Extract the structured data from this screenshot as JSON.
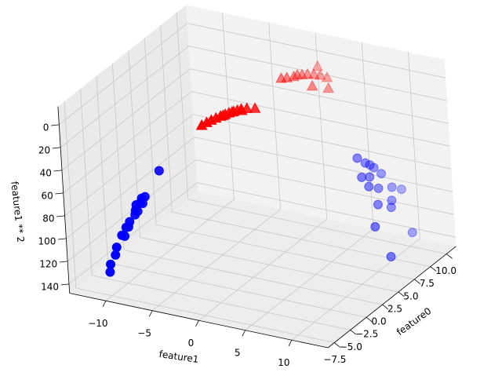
{
  "chart_data": {
    "type": "scatter3d",
    "xlabel": "feature0",
    "ylabel": "feature1",
    "zlabel": "feature1 ** 2",
    "xlim": [
      -8.5,
      11.5
    ],
    "ylim": [
      -13.9,
      13.9
    ],
    "zlim": [
      -16,
      148
    ],
    "xticks": [
      {
        "value": -7.5,
        "label": "−7.5"
      },
      {
        "value": -5,
        "label": "−5.0"
      },
      {
        "value": -2.5,
        "label": "−2.5"
      },
      {
        "value": 0,
        "label": "0.0"
      },
      2.5,
      {
        "value": 5,
        "label": "5.0"
      },
      7.5,
      {
        "value": 10,
        "label": "10.0"
      }
    ],
    "yticks": [
      {
        "value": -10,
        "label": "−10"
      },
      {
        "value": -5,
        "label": "−5"
      },
      0,
      5,
      10
    ],
    "zticks": [
      0,
      20,
      40,
      60,
      80,
      100,
      120,
      140
    ],
    "grid": true,
    "depthshade": true,
    "series": [
      {
        "color": "#ff0000",
        "marker": "triangle",
        "x": [
          -2.85,
          -2.5,
          -2.2,
          -1.9,
          -1.6,
          -1.3,
          -1.0,
          -0.7,
          -0.4,
          -0.1,
          0.2,
          0.6,
          -0.8,
          -1.5,
          -0.3,
          6.0,
          6.3,
          6.8,
          7.2,
          7.5,
          7.9,
          8.3,
          8.7,
          9.45,
          8.15,
          7.0,
          9.0
        ],
        "y": [
          -2.5,
          -2.2,
          -1.9,
          -1.6,
          -1.3,
          -1.0,
          -0.8,
          -0.5,
          -0.3,
          -0.1,
          0.3,
          0.9,
          -0.6,
          -1.1,
          0.1,
          0.0,
          0.4,
          0.8,
          0.9,
          1.2,
          1.5,
          1.9,
          2.3,
          1.5,
          3.5,
          2.6,
          2.8
        ],
        "z": [
          6.25,
          4.84,
          3.61,
          2.56,
          1.69,
          1.0,
          0.64,
          0.25,
          0.09,
          0.01,
          0.09,
          0.81,
          0.36,
          1.21,
          0.01,
          0.0,
          0.16,
          0.64,
          0.81,
          1.44,
          2.25,
          3.61,
          5.29,
          2.25,
          12.25,
          6.76,
          7.84
        ]
      },
      {
        "color": "#0000ff",
        "marker": "circle",
        "x": [
          -3.05,
          -3.35,
          -3.8,
          -4.2,
          -3.9,
          -4.5,
          -3.2,
          -4.0,
          -4.8,
          -5.1,
          -4.3,
          -5.3,
          -5.0,
          -5.4,
          -5.0,
          -4.6,
          -3.6,
          -4.4,
          6.2,
          6.8,
          7.2,
          6.5,
          7.5,
          5.9,
          6.9,
          8.5,
          7.8,
          6.0,
          4.56,
          8.67,
          5.0,
          9.5,
          7.4,
          8.0,
          5.6
        ],
        "y": [
          -7.3,
          -8.8,
          -9.0,
          -9.3,
          -9.6,
          -9.8,
          -9.2,
          -8.7,
          -10.0,
          -10.3,
          -10.1,
          -10.8,
          -11.2,
          -11.5,
          -11.9,
          -8.9,
          -9.5,
          -10.5,
          7.6,
          8.0,
          8.2,
          8.6,
          8.4,
          8.9,
          9.2,
          9.5,
          9.9,
          9.7,
          10.3,
          11.3,
          11.5,
          9.8,
          10.1,
          8.8,
          8.4
        ],
        "z": [
          53.3,
          77.4,
          81,
          86.5,
          92.2,
          96,
          84.6,
          75.7,
          100,
          106.1,
          102,
          116.6,
          125.4,
          132.3,
          141.6,
          79.2,
          90.3,
          110.3,
          57.8,
          64,
          67.2,
          74,
          70.6,
          79.2,
          84.6,
          90.3,
          98,
          94.1,
          106.1,
          127.7,
          132.3,
          96,
          102,
          77.4,
          70.6
        ]
      }
    ]
  }
}
